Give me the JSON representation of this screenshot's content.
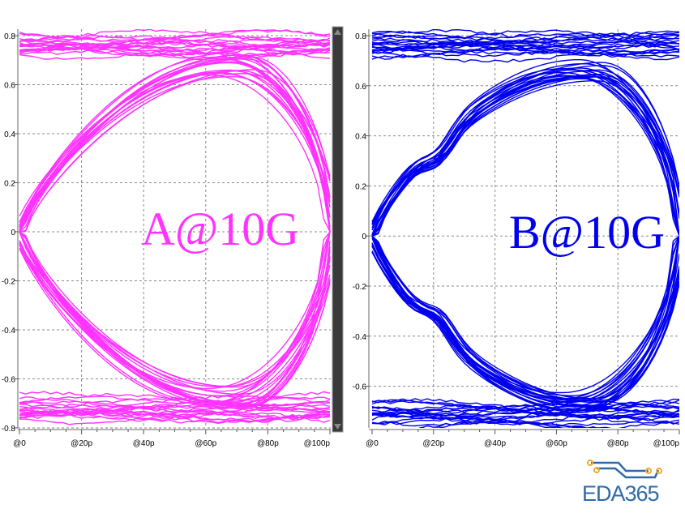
{
  "chart_data": [
    {
      "type": "line",
      "subtype": "eye-diagram",
      "label": "A@10G",
      "color": "#ff33ff",
      "ylim": [
        -0.83,
        0.83
      ],
      "yticks": [
        "0.8",
        "0.6",
        "0.4",
        "0.2",
        "0",
        "-0.2",
        "-0.4",
        "-0.6",
        "-0.8"
      ],
      "xlim": [
        0,
        100
      ],
      "xticks": [
        "@0",
        "@20p",
        "@40p",
        "@60p",
        "@80p",
        "@100p"
      ],
      "eye_height_peak": 0.68,
      "rails": [
        0.76,
        -0.72
      ],
      "crossing": 0,
      "grid": true
    },
    {
      "type": "line",
      "subtype": "eye-diagram",
      "label": "B@10G",
      "color": "#0000ee",
      "ylim": [
        -0.8,
        0.82
      ],
      "yticks": [
        "0.8",
        "0.6",
        "0.4",
        "0.2",
        "0",
        "-0.2",
        "-0.4",
        "-0.6"
      ],
      "xlim": [
        0,
        100
      ],
      "xticks": [
        "@0",
        "@20p",
        "@40p",
        "@60p",
        "@80p",
        "@100p"
      ],
      "eye_height_peak": 0.66,
      "rails": [
        0.76,
        -0.72
      ],
      "crossing": 0,
      "grid": true
    }
  ],
  "logo": {
    "text": "EDA365",
    "circuit_color": "#f0a830",
    "text_color": "#2f6aa8"
  }
}
